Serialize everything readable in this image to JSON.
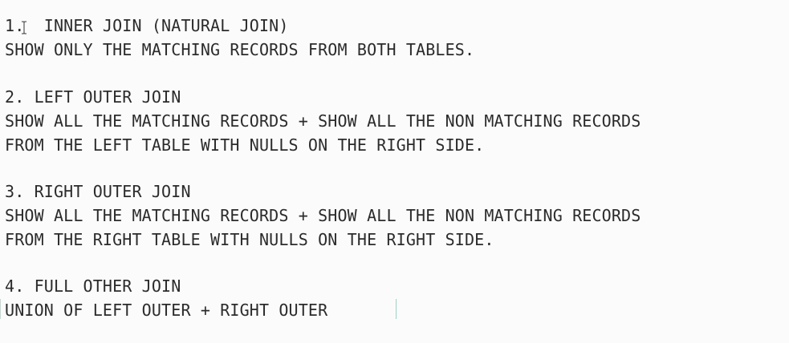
{
  "editor": {
    "lines": [
      "1.  INNER JOIN (NATURAL JOIN)",
      "SHOW ONLY THE MATCHING RECORDS FROM BOTH TABLES.",
      "",
      "2. LEFT OUTER JOIN",
      "SHOW ALL THE MATCHING RECORDS + SHOW ALL THE NON MATCHING RECORDS",
      "FROM THE LEFT TABLE WITH NULLS ON THE RIGHT SIDE.",
      "",
      "3. RIGHT OUTER JOIN",
      "SHOW ALL THE MATCHING RECORDS + SHOW ALL THE NON MATCHING RECORDS",
      "FROM THE RIGHT TABLE WITH NULLS ON THE RIGHT SIDE.",
      "",
      "4. FULL OTHER JOIN",
      "UNION OF LEFT OUTER + RIGHT OUTER"
    ]
  },
  "icons": {
    "pointer": "text-cursor-icon"
  },
  "colors": {
    "background": "#fbfbfb",
    "text": "#2b2b2b",
    "caret": "#9fd0c7"
  }
}
